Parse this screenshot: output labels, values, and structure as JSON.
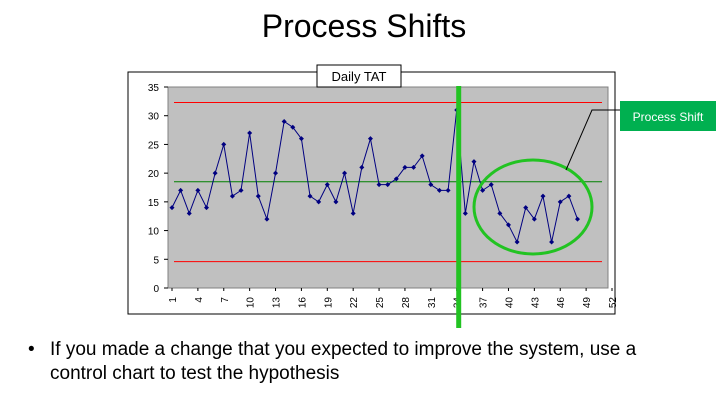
{
  "slide": {
    "title": "Process Shifts",
    "bullet": "If you made a change that you expected to improve the system, use a control chart to test the hypothesis"
  },
  "annotation": {
    "callout_label": "Process Shift",
    "callout_color": "#00b050",
    "shift_marker_color": "#22c322"
  },
  "chart_data": {
    "type": "line",
    "title": "Daily TAT",
    "series": [
      {
        "values": [
          14,
          17,
          13,
          17,
          14,
          20,
          25,
          16,
          17,
          27,
          16,
          12,
          20,
          29,
          28,
          26,
          16,
          15,
          18,
          15,
          20,
          13,
          21,
          26,
          18,
          18,
          19,
          21,
          21,
          23,
          18,
          17,
          17,
          31,
          13,
          22,
          17,
          18,
          13,
          11,
          8,
          14,
          12,
          16,
          8,
          15,
          16,
          12
        ],
        "color": "#000080"
      }
    ],
    "x_start": 1,
    "x_ticks": [
      1,
      4,
      7,
      10,
      13,
      16,
      19,
      22,
      25,
      28,
      31,
      34,
      37,
      40,
      43,
      46,
      49,
      52
    ],
    "xlim": [
      1,
      52
    ],
    "ylim": [
      0,
      35
    ],
    "y_ticks": [
      0,
      5,
      10,
      15,
      20,
      25,
      30,
      35
    ],
    "upper_control_limit": 32.3,
    "center_line": 18.5,
    "lower_control_limit": 4.6,
    "shift_point": 34,
    "control_limit_color": "#ff0000",
    "center_line_color": "#008000",
    "plot_background": "#c0c0c0"
  }
}
